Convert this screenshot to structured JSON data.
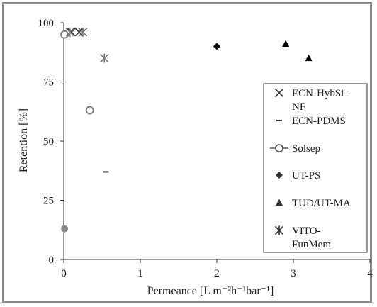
{
  "chart_data": {
    "type": "scatter",
    "xlabel": "Permeance  [L m⁻²h⁻¹bar⁻¹]",
    "ylabel": "Retention [%]",
    "xlim": [
      0,
      4
    ],
    "ylim": [
      0,
      100
    ],
    "x_ticks": [
      "0",
      "1",
      "2",
      "3",
      "4"
    ],
    "y_ticks": [
      "0",
      "25",
      "50",
      "75",
      "100"
    ],
    "grid": false,
    "legend_position": "right",
    "series": [
      {
        "name": "ECN-HybSi-NF",
        "marker": "x",
        "color": "#333333",
        "points": [
          {
            "x": 0.1,
            "y": 96
          },
          {
            "x": 0.2,
            "y": 96
          }
        ]
      },
      {
        "name": "ECN-PDMS",
        "marker": "dash",
        "color": "#333333",
        "points": [
          {
            "x": 0.55,
            "y": 37
          }
        ]
      },
      {
        "name": "Solsep",
        "marker": "open-circle",
        "color": "#777777",
        "points": [
          {
            "x": 0.01,
            "y": 95
          },
          {
            "x": 0.34,
            "y": 63
          }
        ]
      },
      {
        "name": "UT-PS",
        "marker": "diamond",
        "color": "#000000",
        "points": [
          {
            "x": 2.0,
            "y": 90
          }
        ]
      },
      {
        "name": "TUD/UT-MA",
        "marker": "triangle",
        "color": "#000000",
        "points": [
          {
            "x": 2.9,
            "y": 91
          },
          {
            "x": 3.2,
            "y": 85
          }
        ]
      },
      {
        "name": "VITO-FunMem",
        "marker": "asterisk",
        "color": "#777777",
        "points": [
          {
            "x": 0.08,
            "y": 96
          },
          {
            "x": 0.25,
            "y": 96
          },
          {
            "x": 0.53,
            "y": 85
          }
        ]
      }
    ],
    "extra_points": [
      {
        "x": 0.01,
        "y": 13,
        "marker": "filled-circle",
        "color": "#888888"
      }
    ],
    "legend_entries": [
      {
        "label_lines": [
          "ECN-HybSi-",
          "NF"
        ],
        "marker": "x"
      },
      {
        "label_lines": [
          "ECN-PDMS"
        ],
        "marker": "dash"
      },
      {
        "label_lines": [
          "Solsep"
        ],
        "marker": "open-circle-line"
      },
      {
        "label_lines": [
          "UT-PS"
        ],
        "marker": "diamond"
      },
      {
        "label_lines": [
          "TUD/UT-MA"
        ],
        "marker": "triangle"
      },
      {
        "label_lines": [
          "VITO-",
          "FunMem"
        ],
        "marker": "asterisk"
      }
    ]
  }
}
